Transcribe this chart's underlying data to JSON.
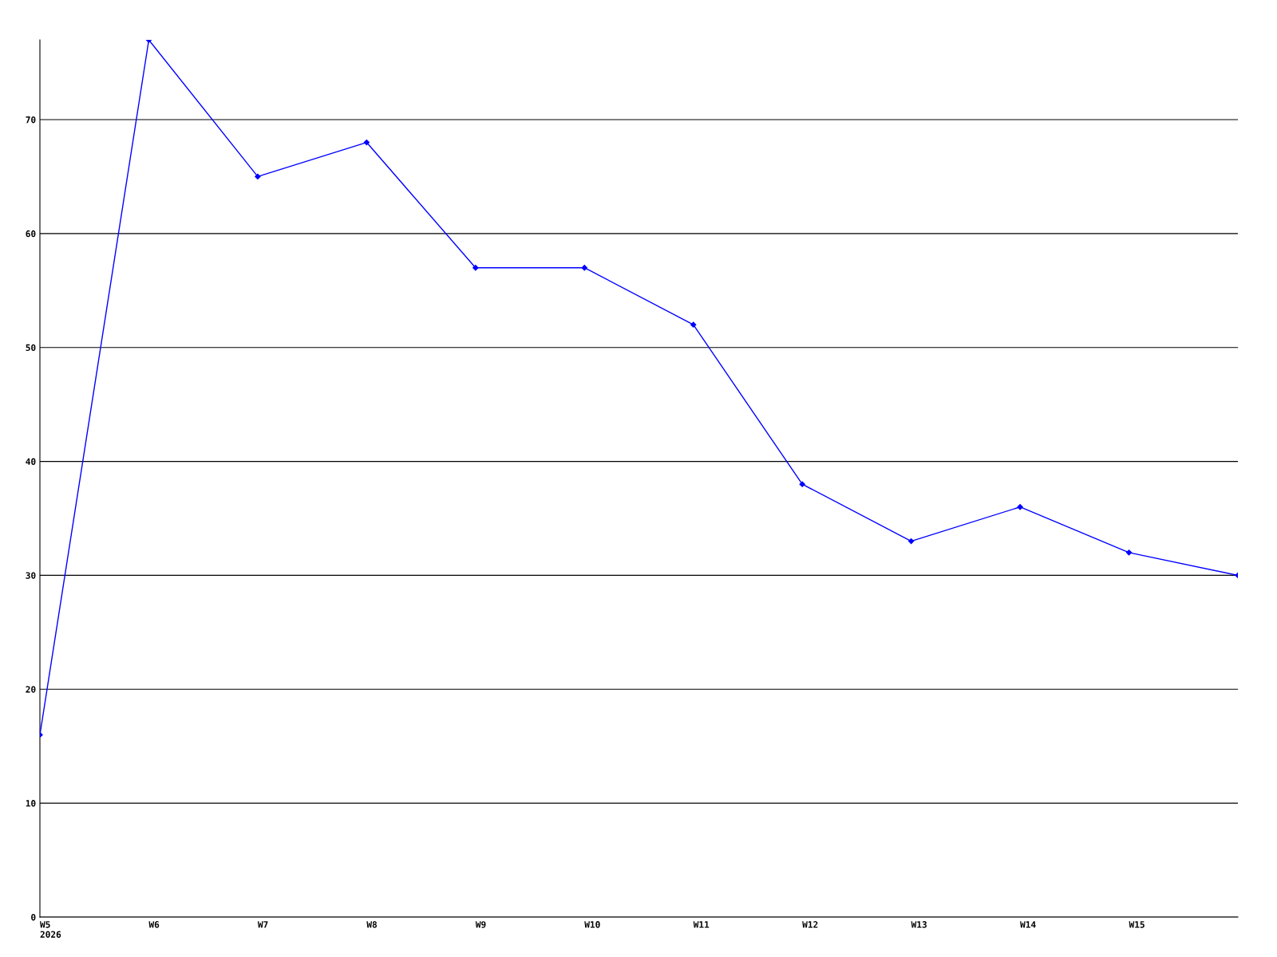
{
  "chart_data": {
    "type": "line",
    "categories": [
      "W5\n2026",
      "W6",
      "W7",
      "W8",
      "W9",
      "W10",
      "W11",
      "W12",
      "W13",
      "W14",
      "W15",
      null
    ],
    "series": [
      {
        "color": "#0000ff",
        "values": [
          16,
          77,
          65,
          68,
          57,
          57,
          52,
          38,
          33,
          36,
          32,
          30
        ]
      }
    ],
    "ylim": [
      0,
      77
    ],
    "yticks": [
      0,
      10,
      20,
      30,
      40,
      50,
      60,
      70
    ],
    "grid": "y",
    "marker": "diamond",
    "line_style": "solid"
  }
}
